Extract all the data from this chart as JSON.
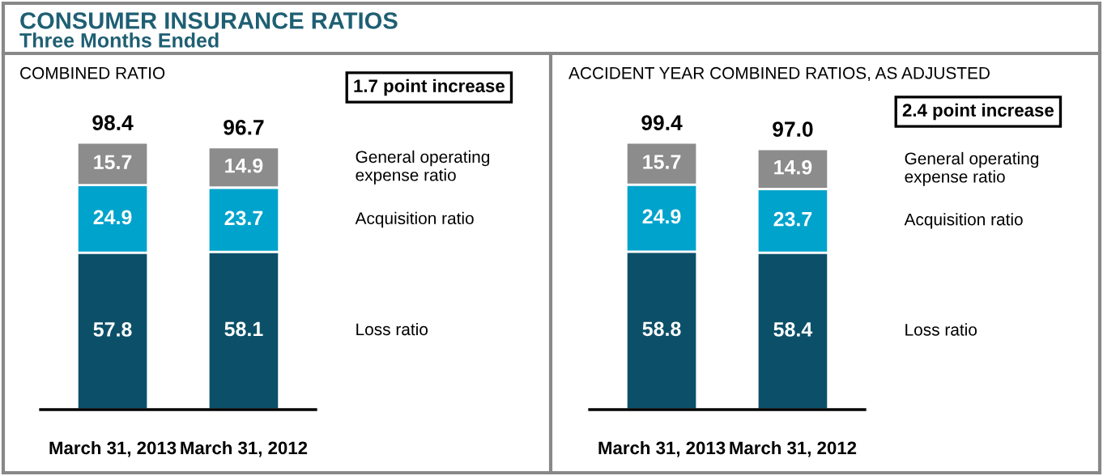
{
  "chart_data": [
    {
      "type": "bar",
      "title": "CONSUMER INSURANCE RATIOS",
      "subtitle": "Three Months Ended",
      "stacked": true,
      "data_labels": true,
      "grid": false,
      "legend": false,
      "tick_labels": "x",
      "annotations": [
        "COMBINED RATIO",
        "1.7 point increase"
      ],
      "categories": [
        "March 31, 2013",
        "March 31, 2012"
      ],
      "series": [
        {
          "name": "Loss ratio",
          "color": "#0b5068",
          "values": [
            57.8,
            58.1
          ]
        },
        {
          "name": "Acquisition ratio",
          "color": "#00a3cc",
          "values": [
            24.9,
            23.7
          ]
        },
        {
          "name": "General operating\nexpense ratio",
          "color": "#8c8c8c",
          "values": [
            15.7,
            14.9
          ]
        }
      ],
      "totals": [
        "98.4",
        "96.7"
      ]
    },
    {
      "type": "bar",
      "stacked": true,
      "data_labels": true,
      "grid": false,
      "legend": false,
      "tick_labels": "x",
      "annotations": [
        "ACCIDENT YEAR COMBINED RATIOS, AS ADJUSTED",
        "2.4 point increase"
      ],
      "categories": [
        "March 31, 2013",
        "March 31, 2012"
      ],
      "series": [
        {
          "name": "Loss ratio",
          "color": "#0b5068",
          "values": [
            58.8,
            58.4
          ]
        },
        {
          "name": "Acquisition ratio",
          "color": "#00a3cc",
          "values": [
            24.9,
            23.7
          ]
        },
        {
          "name": "General operating\nexpense ratio",
          "color": "#8c8c8c",
          "values": [
            15.7,
            14.9
          ]
        }
      ],
      "totals": [
        "99.4",
        "97.0"
      ]
    }
  ]
}
